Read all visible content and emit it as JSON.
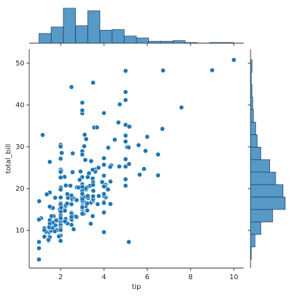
{
  "chart_data": [
    {
      "type": "scatter",
      "x_label": "tip",
      "y_label": "total_bill",
      "color": "#1f77b4",
      "xlim": [
        0.55,
        10.45
      ],
      "ylim": [
        1.0,
        53.3
      ],
      "xticks": [
        2,
        4,
        6,
        8,
        10
      ],
      "yticks": [
        10,
        20,
        30,
        40,
        50
      ],
      "x": [
        1.01,
        1.66,
        3.5,
        3.31,
        3.61,
        4.71,
        2,
        3.12,
        1.96,
        3.23,
        1.71,
        5,
        1.57,
        3,
        3.02,
        3.92,
        1.67,
        3.71,
        3.5,
        3.35,
        4.08,
        2.75,
        2.23,
        7.58,
        3.18,
        2.34,
        2,
        2,
        4.3,
        3,
        1.45,
        2.5,
        3,
        2.45,
        3.27,
        3.6,
        2,
        3.07,
        2.31,
        5,
        2.24,
        2.54,
        3.06,
        1.32,
        5.6,
        3,
        5,
        6,
        2.05,
        3,
        2.5,
        2.6,
        5.2,
        1.56,
        4.34,
        3.51,
        3,
        1.5,
        1.76,
        6.73,
        3.21,
        2,
        1.98,
        3.76,
        2.64,
        3.15,
        2.47,
        1,
        2.01,
        2.09,
        1.97,
        3,
        3.14,
        5,
        2.2,
        1.25,
        3.08,
        4,
        3,
        2.71,
        3,
        3.4,
        1.83,
        5,
        2.03,
        5.17,
        2,
        4,
        5.85,
        3,
        3,
        3.5,
        1,
        4.3,
        3.25,
        4.73,
        4,
        1.5,
        3,
        1.5,
        2.5,
        3,
        2.5,
        3.48,
        4.08,
        1.64,
        4.06,
        4.29,
        3.76,
        4,
        3,
        1,
        4,
        2.55,
        4,
        3.5,
        5.07,
        1.5,
        1.8,
        2.92,
        2.31,
        1.68,
        2.5,
        2,
        2.52,
        4.2,
        1.48,
        2,
        2,
        2.18,
        1.5,
        2.83,
        1.5,
        2,
        3.25,
        1.25,
        2,
        2,
        2,
        2.75,
        3.5,
        6.7,
        5,
        5,
        2.3,
        1.5,
        1.36,
        1.63,
        1.73,
        2,
        2.5,
        2,
        2.74,
        2,
        2,
        5.14,
        5,
        3.75,
        2.61,
        2,
        3.5,
        2.5,
        2,
        2,
        3,
        3.48,
        2.24,
        4.5,
        1.61,
        2,
        10,
        3.16,
        5.15,
        3.18,
        4,
        3.11,
        2,
        2,
        4,
        3.55,
        3.68,
        5.65,
        3.5,
        6.5,
        3,
        5,
        3.5,
        2,
        3.5,
        4,
        1.5,
        4.19,
        2.56,
        2.02,
        4,
        1.44,
        2,
        5,
        2,
        2,
        4,
        2.01,
        2,
        2.5,
        4,
        3.23,
        3.41,
        3,
        2.03,
        2.23,
        2,
        5.16,
        9,
        2.5,
        6.5,
        1.1,
        3,
        1.5,
        1.44,
        3.09,
        2.2,
        3.48,
        1.92,
        3,
        1.58,
        2.5,
        2,
        3,
        2.72,
        2.88,
        2,
        3,
        3.39,
        1.47,
        3,
        1.25,
        1,
        1.17,
        4.67,
        5.92,
        2,
        2,
        1.75,
        3
      ],
      "values": [
        16.99,
        10.34,
        21.01,
        23.68,
        24.59,
        25.29,
        8.77,
        26.88,
        15.04,
        14.78,
        10.27,
        35.26,
        15.42,
        18.43,
        14.83,
        21.58,
        10.33,
        16.29,
        16.97,
        20.65,
        17.92,
        20.29,
        15.77,
        39.42,
        19.82,
        17.81,
        13.37,
        12.69,
        21.7,
        19.65,
        9.55,
        18.35,
        15.06,
        20.69,
        17.78,
        24.06,
        16.31,
        16.93,
        18.69,
        31.27,
        16.04,
        17.46,
        13.94,
        9.68,
        30.4,
        18.29,
        22.23,
        32.4,
        28.55,
        18.04,
        12.54,
        10.29,
        34.81,
        9.94,
        25.56,
        19.49,
        38.01,
        26.41,
        11.24,
        48.27,
        20.29,
        13.81,
        11.02,
        18.29,
        17.59,
        20.08,
        16.45,
        3.07,
        20.23,
        15.01,
        12.02,
        17.07,
        26.86,
        25.28,
        14.73,
        10.51,
        17.92,
        27.2,
        22.76,
        17.29,
        19.44,
        16.66,
        10.07,
        32.68,
        15.98,
        34.83,
        13.03,
        18.28,
        24.71,
        21.16,
        28.97,
        22.49,
        5.75,
        16.32,
        22.75,
        40.17,
        27.28,
        12.03,
        21.01,
        12.46,
        11.35,
        15.38,
        44.3,
        22.42,
        20.92,
        15.36,
        20.49,
        25.21,
        18.24,
        14.31,
        14,
        7.25,
        38.07,
        23.95,
        25.71,
        17.31,
        29.93,
        10.65,
        12.43,
        24.08,
        11.69,
        13.42,
        14.26,
        15.95,
        12.48,
        29.8,
        8.52,
        14.52,
        11.38,
        22.82,
        19.08,
        20.27,
        11.17,
        12.26,
        18.26,
        8.51,
        10.33,
        14.15,
        16,
        13.16,
        17.47,
        34.3,
        41.19,
        27.05,
        16.43,
        8.35,
        18.64,
        11.87,
        9.78,
        7.51,
        14.07,
        13.13,
        17.26,
        24.55,
        19.77,
        29.85,
        48.17,
        25,
        13.39,
        16.49,
        21.5,
        12.66,
        16.21,
        13.81,
        17.51,
        24.52,
        20.76,
        31.71,
        10.59,
        10.63,
        50.81,
        15.81,
        7.25,
        31.85,
        16.82,
        32.9,
        17.89,
        14.48,
        9.6,
        34.63,
        34.65,
        23.33,
        45.35,
        23.17,
        40.55,
        20.69,
        20.9,
        30.46,
        18.15,
        23.1,
        15.69,
        19.81,
        28.44,
        15.48,
        16.58,
        7.56,
        10.34,
        43.11,
        13,
        13.51,
        18.71,
        12.74,
        13,
        16.4,
        20.53,
        16.47,
        26.59,
        38.73,
        24.27,
        12.76,
        30.06,
        25.89,
        48.33,
        13.27,
        28.17,
        12.9,
        28.15,
        11.59,
        7.74,
        30.14,
        12.16,
        13.42,
        8.58,
        15.98,
        13.42,
        16.27,
        10.09,
        20.45,
        13.28,
        22.12,
        24.01,
        15.69,
        11.61,
        10.77,
        15.53,
        10.07,
        12.6,
        32.83,
        35.83,
        29.03,
        27.18,
        22.67,
        17.82,
        18.78
      ]
    },
    {
      "type": "histogram",
      "orientation": "vertical",
      "color": "#1f77b4",
      "ylim": [
        0,
        57
      ],
      "bins": [
        1,
        1.5625,
        2.125,
        2.6875,
        3.25,
        3.8125,
        4.375,
        4.9375,
        5.5,
        6.0625,
        6.625,
        7.1875,
        7.75,
        8.3125,
        8.875,
        9.4375,
        10
      ],
      "values": [
        15,
        25,
        54,
        27,
        50,
        20,
        21,
        11,
        8,
        3,
        3,
        4,
        1,
        0,
        1,
        1
      ]
    },
    {
      "type": "histogram",
      "orientation": "horizontal",
      "color": "#1f77b4",
      "xlim": [
        0,
        50
      ],
      "bins": [
        3.07,
        6.05,
        9.04,
        12.02,
        15.01,
        17.99,
        20.97,
        23.96,
        26.94,
        29.93,
        32.91,
        35.89,
        38.88,
        41.86,
        44.85,
        47.83,
        50.81
      ],
      "values": [
        1,
        6,
        14,
        30,
        47,
        44,
        34,
        26,
        14,
        9,
        7,
        4,
        3,
        2,
        1,
        2
      ]
    }
  ]
}
